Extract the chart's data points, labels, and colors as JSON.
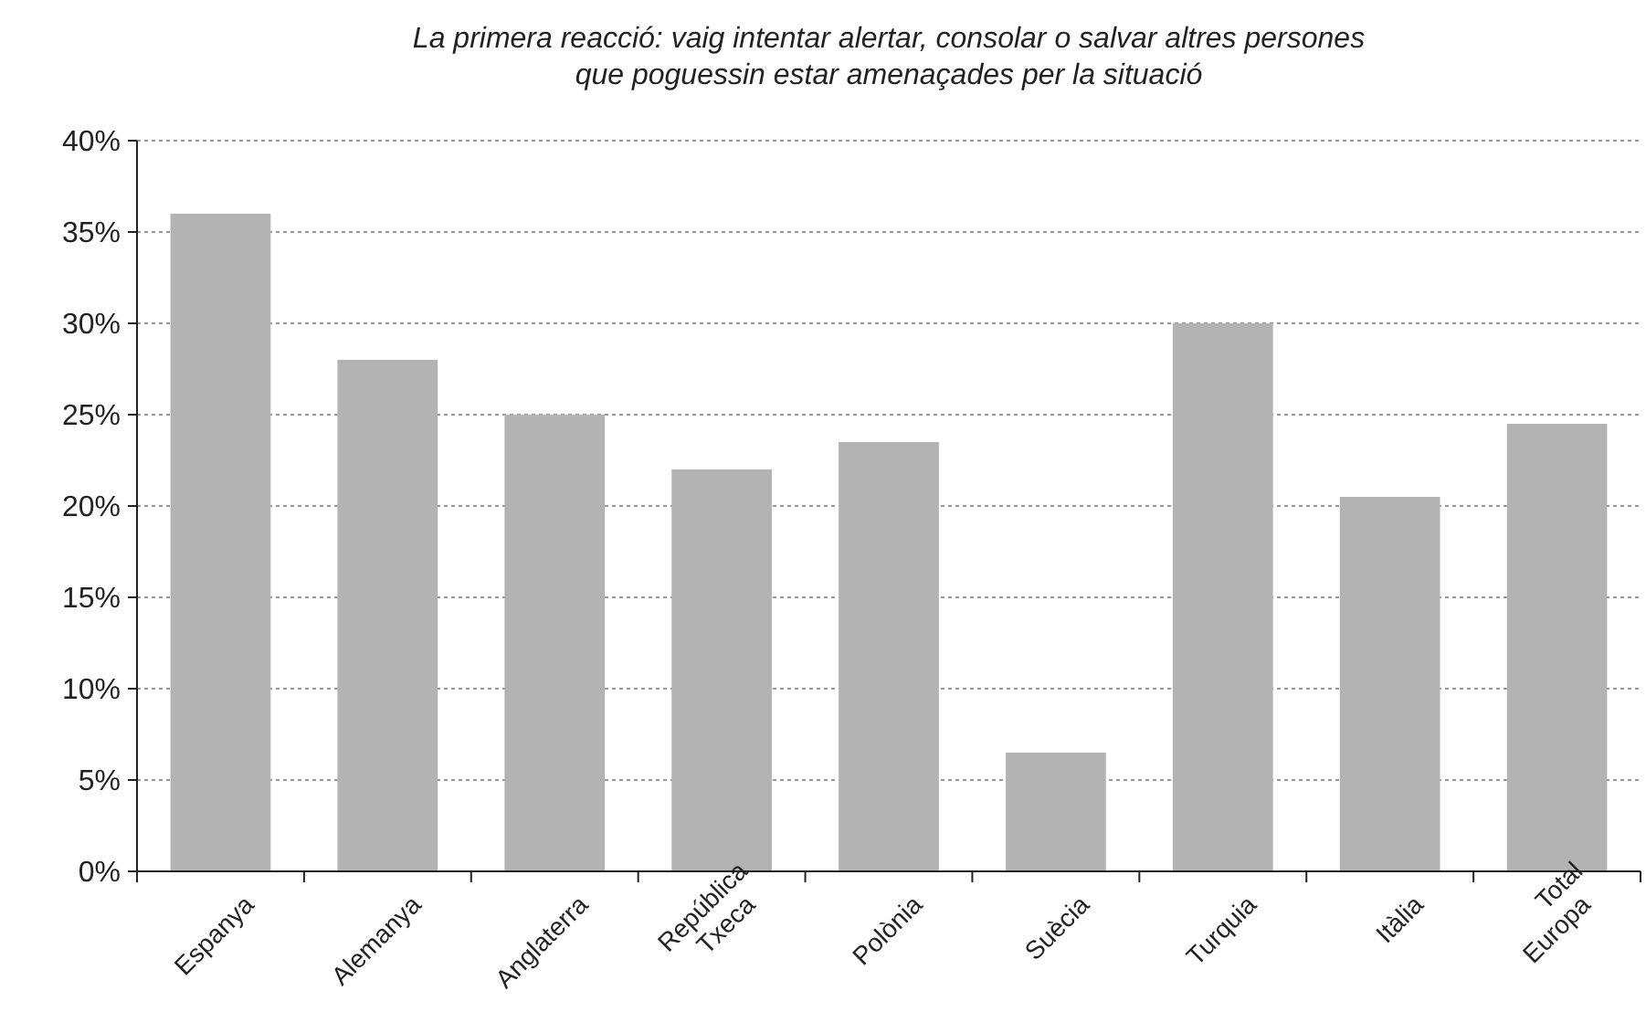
{
  "chart_data": {
    "type": "bar",
    "title": "La primera reacció: vaig intentar alertar, consolar o salvar altres persones\nque poguessin estar amenaçades per la situació",
    "categories": [
      "Espanya",
      "Alemanya",
      "Anglaterra",
      "República Txeca",
      "Polònia",
      "Suècia",
      "Turquia",
      "Itàlia",
      "Total Europa"
    ],
    "values": [
      36,
      28,
      25,
      22,
      23.5,
      6.5,
      30,
      20.5,
      24.5
    ],
    "color": "#b3b3b3",
    "ylim": [
      0,
      40
    ],
    "yticks": [
      {
        "value": 0,
        "label": "0%"
      },
      {
        "value": 5,
        "label": "5%"
      },
      {
        "value": 10,
        "label": "10%"
      },
      {
        "value": 15,
        "label": "15%"
      },
      {
        "value": 20,
        "label": "20%"
      },
      {
        "value": 25,
        "label": "25%"
      },
      {
        "value": 30,
        "label": "30%"
      },
      {
        "value": 35,
        "label": "35%"
      },
      {
        "value": 40,
        "label": "40%"
      }
    ],
    "grid": "y"
  }
}
